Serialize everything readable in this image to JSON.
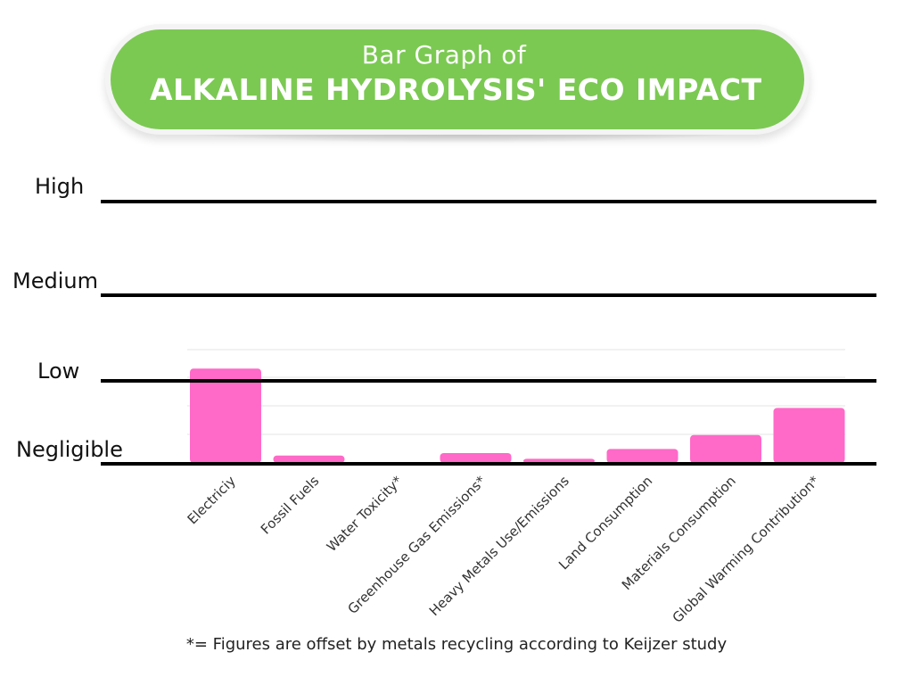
{
  "header": {
    "subtitle": "Bar Graph of",
    "title": "ALKALINE HYDROLYSIS' ECO IMPACT"
  },
  "footnote": "*= Figures are offset by metals recycling according to Keijzer study",
  "colors": {
    "banner": "#7bc952",
    "bar": "#ff69c8",
    "level_line": "#000000",
    "gridline": "#e6e6e6"
  },
  "chart_data": {
    "type": "bar",
    "title": "ALKALINE HYDROLYSIS' ECO IMPACT",
    "categories": [
      "Electriciy",
      "Fossil Fuels",
      "Water Toxicity*",
      "Greenhouse Gas Emissions*",
      "Heavy Metals Use/Emissions",
      "Land Consumption",
      "Materials Consumption",
      "Global Warming Contribution*"
    ],
    "values": [
      1.15,
      0.09,
      0.01,
      0.12,
      0.05,
      0.17,
      0.34,
      0.67
    ],
    "y_levels": [
      {
        "label": "Negligible",
        "value": 0
      },
      {
        "label": "Low",
        "value": 1
      },
      {
        "label": "Medium",
        "value": 2
      },
      {
        "label": "High",
        "value": 3
      }
    ],
    "ylim": [
      0,
      3
    ],
    "grid": true,
    "legend": "none",
    "xlabel": "",
    "ylabel": ""
  }
}
